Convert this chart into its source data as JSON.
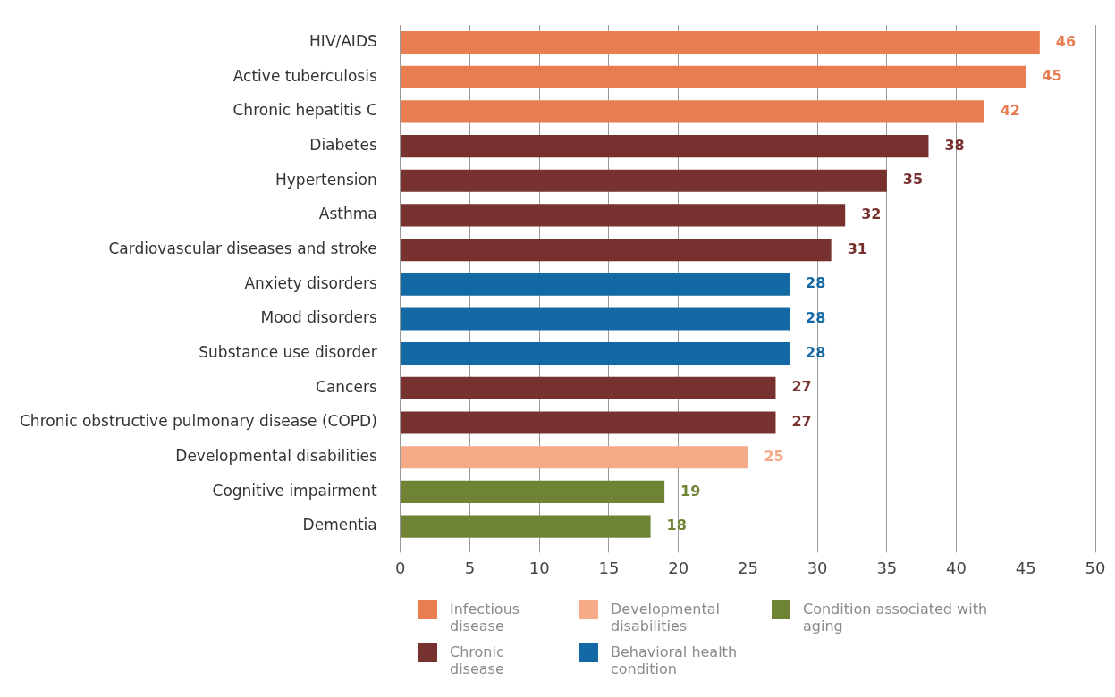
{
  "chart_data": {
    "type": "bar",
    "orientation": "horizontal",
    "stacked": true,
    "categories": [
      "HIV/AIDS",
      "Active tuberculosis",
      "Chronic hepatitis C",
      "Diabetes",
      "Hypertension",
      "Asthma",
      "Cardiovascular diseases and stroke",
      "Anxiety disorders",
      "Mood disorders",
      "Substance use disorder",
      "Cancers",
      "Chronic obstructive pulmonary disease (COPD)",
      "Developmental disabilities",
      "Cognitive impairment",
      "Dementia"
    ],
    "series": [
      {
        "name": "Infectious disease",
        "color": "#e87d51",
        "values": [
          46,
          45,
          42,
          null,
          null,
          null,
          null,
          null,
          null,
          null,
          null,
          null,
          null,
          null,
          null
        ]
      },
      {
        "name": "Developmental disabilities",
        "color": "#f6ab88",
        "values": [
          null,
          null,
          null,
          null,
          null,
          null,
          null,
          null,
          null,
          null,
          null,
          null,
          25,
          null,
          null
        ]
      },
      {
        "name": "Condition associated with aging",
        "color": "#6e8434",
        "values": [
          null,
          null,
          null,
          null,
          null,
          null,
          null,
          null,
          null,
          null,
          null,
          null,
          null,
          19,
          18
        ]
      },
      {
        "name": "Chronic disease",
        "color": "#773230",
        "values": [
          null,
          null,
          null,
          38,
          35,
          32,
          31,
          null,
          null,
          null,
          27,
          27,
          null,
          null,
          null
        ]
      },
      {
        "name": "Behavioral health condition",
        "color": "#1369a4",
        "values": [
          null,
          null,
          null,
          null,
          null,
          null,
          null,
          28,
          28,
          28,
          null,
          null,
          null,
          null,
          null
        ]
      }
    ],
    "xlim": [
      0,
      50
    ],
    "xticks": [
      0,
      5,
      10,
      15,
      20,
      25,
      30,
      35,
      40,
      45,
      50
    ],
    "grid": "x",
    "legend": "bottom",
    "data_labels": true
  }
}
